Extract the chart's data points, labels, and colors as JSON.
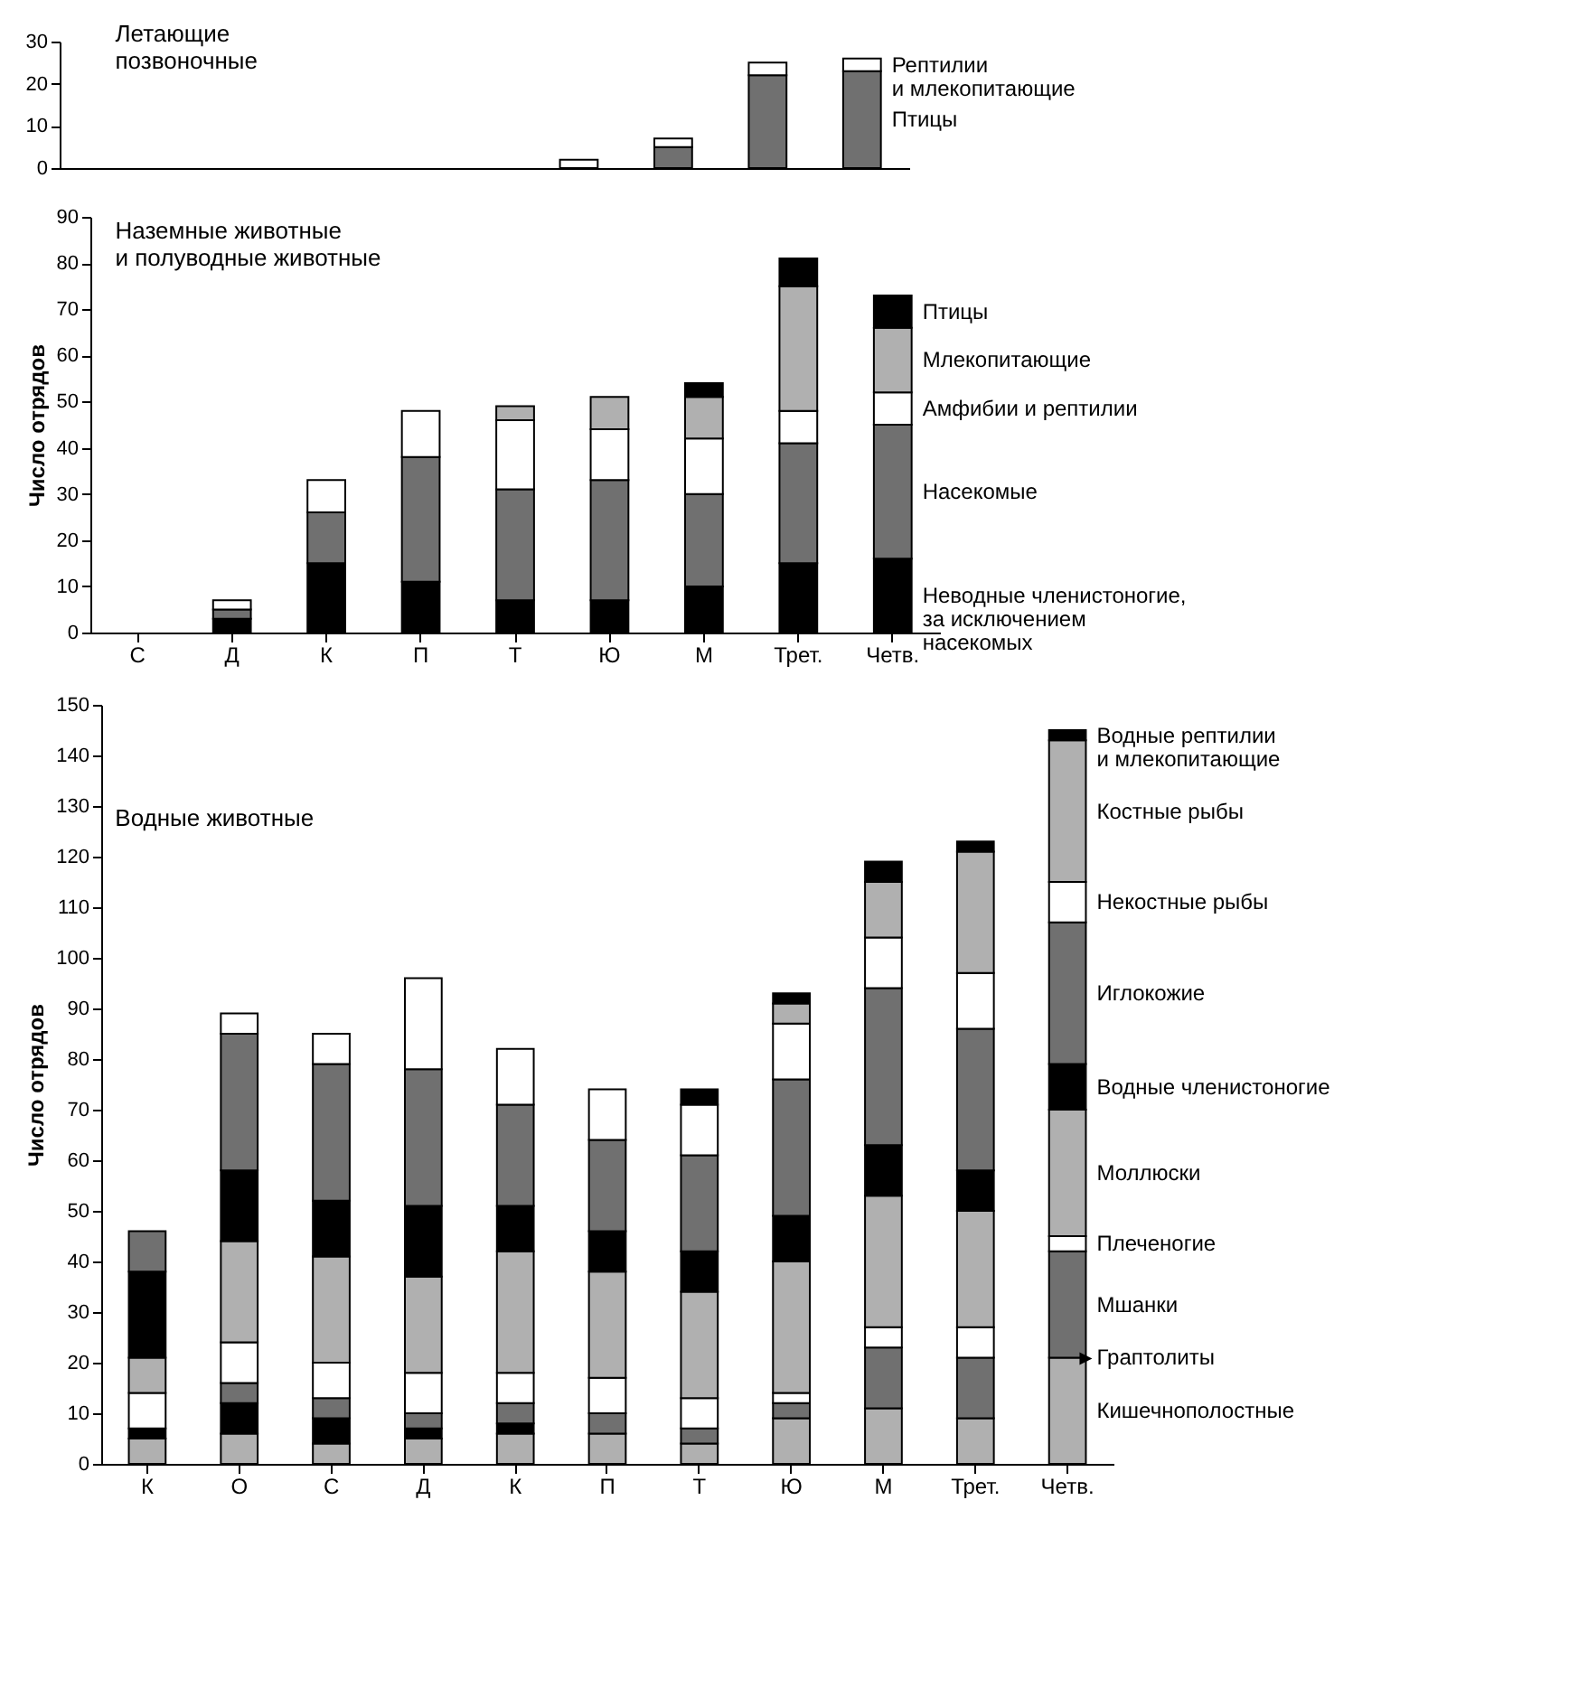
{
  "chart_data": [
    {
      "type": "bar",
      "title": "Летающие\nпозвоночные",
      "stacked": true,
      "tick_labels": "y",
      "categories": [
        null,
        null,
        null,
        null,
        null,
        null,
        null,
        null,
        null
      ],
      "ylim": [
        0,
        30
      ],
      "yticks": [
        0,
        10,
        20,
        30
      ],
      "series": [
        {
          "name": "Птицы",
          "color": "#707070",
          "values": [
            0,
            0,
            0,
            0,
            0,
            0,
            5,
            22,
            23
          ]
        },
        {
          "name": "Рептилии и млекопитающие",
          "color": "#ffffff",
          "values": [
            0,
            0,
            0,
            0,
            0,
            2,
            2,
            3,
            3
          ]
        }
      ]
    },
    {
      "type": "bar",
      "title": "Наземные животные\nи полуводные животные",
      "ylabel": "Число отрядов",
      "stacked": true,
      "categories": [
        "С",
        "Д",
        "К",
        "П",
        "Т",
        "Ю",
        "М",
        "Трет.",
        "Четв."
      ],
      "ylim": [
        0,
        90
      ],
      "yticks": [
        0,
        10,
        20,
        30,
        40,
        50,
        60,
        70,
        80,
        90
      ],
      "series": [
        {
          "name": "Неводные членистоногие, за исключением насекомых",
          "color": "#000000",
          "values": [
            0,
            3,
            15,
            11,
            7,
            7,
            10,
            15,
            16
          ]
        },
        {
          "name": "Насекомые",
          "color": "#707070",
          "values": [
            0,
            2,
            11,
            27,
            24,
            26,
            20,
            26,
            29
          ]
        },
        {
          "name": "Амфибии и рептилии",
          "color": "#ffffff",
          "values": [
            0,
            2,
            7,
            10,
            15,
            11,
            12,
            7,
            7
          ]
        },
        {
          "name": "Млекопитающие",
          "color": "#b0b0b0",
          "values": [
            0,
            0,
            0,
            0,
            3,
            7,
            9,
            27,
            14
          ]
        },
        {
          "name": "Птицы",
          "color": "#000000",
          "values": [
            0,
            0,
            0,
            0,
            0,
            0,
            3,
            6,
            7
          ]
        }
      ]
    },
    {
      "type": "bar",
      "title": "Водные животные",
      "ylabel": "Число отрядов",
      "stacked": true,
      "categories": [
        "К",
        "О",
        "С",
        "Д",
        "К",
        "П",
        "Т",
        "Ю",
        "М",
        "Трет.",
        "Четв."
      ],
      "ylim": [
        0,
        150
      ],
      "yticks": [
        0,
        10,
        20,
        30,
        40,
        50,
        60,
        70,
        80,
        90,
        100,
        110,
        120,
        130,
        140,
        150
      ],
      "series": [
        {
          "name": "Кишечнополостные",
          "color": "#b0b0b0",
          "values": [
            5,
            6,
            4,
            5,
            6,
            6,
            4,
            9,
            11,
            9,
            21
          ]
        },
        {
          "name": "Граптолиты",
          "color": "#000000",
          "values": [
            2,
            6,
            5,
            2,
            2,
            0,
            0,
            0,
            0,
            0,
            0
          ]
        },
        {
          "name": "Мшанки",
          "color": "#707070",
          "values": [
            0,
            4,
            4,
            3,
            4,
            4,
            3,
            3,
            12,
            12,
            21
          ]
        },
        {
          "name": "Плеченогие",
          "color": "#ffffff",
          "values": [
            7,
            8,
            7,
            8,
            6,
            7,
            6,
            2,
            4,
            6,
            3
          ]
        },
        {
          "name": "Моллюски",
          "color": "#b0b0b0",
          "values": [
            7,
            20,
            21,
            19,
            24,
            21,
            21,
            26,
            26,
            23,
            25
          ]
        },
        {
          "name": "Водные членистоногие",
          "color": "#000000",
          "values": [
            17,
            14,
            11,
            14,
            9,
            8,
            8,
            9,
            10,
            8,
            9
          ]
        },
        {
          "name": "Иглокожие",
          "color": "#707070",
          "values": [
            8,
            27,
            27,
            27,
            20,
            18,
            19,
            27,
            31,
            28,
            28
          ]
        },
        {
          "name": "Некостные рыбы",
          "color": "#ffffff",
          "values": [
            0,
            4,
            6,
            18,
            11,
            10,
            10,
            11,
            10,
            11,
            8
          ]
        },
        {
          "name": "Костные рыбы",
          "color": "#b0b0b0",
          "values": [
            0,
            0,
            0,
            0,
            0,
            0,
            0,
            4,
            11,
            24,
            28
          ]
        },
        {
          "name": "Водные рептилии и млекопитающие",
          "color": "#000000",
          "values": [
            0,
            0,
            0,
            0,
            0,
            0,
            3,
            2,
            4,
            2,
            2
          ]
        }
      ]
    }
  ]
}
